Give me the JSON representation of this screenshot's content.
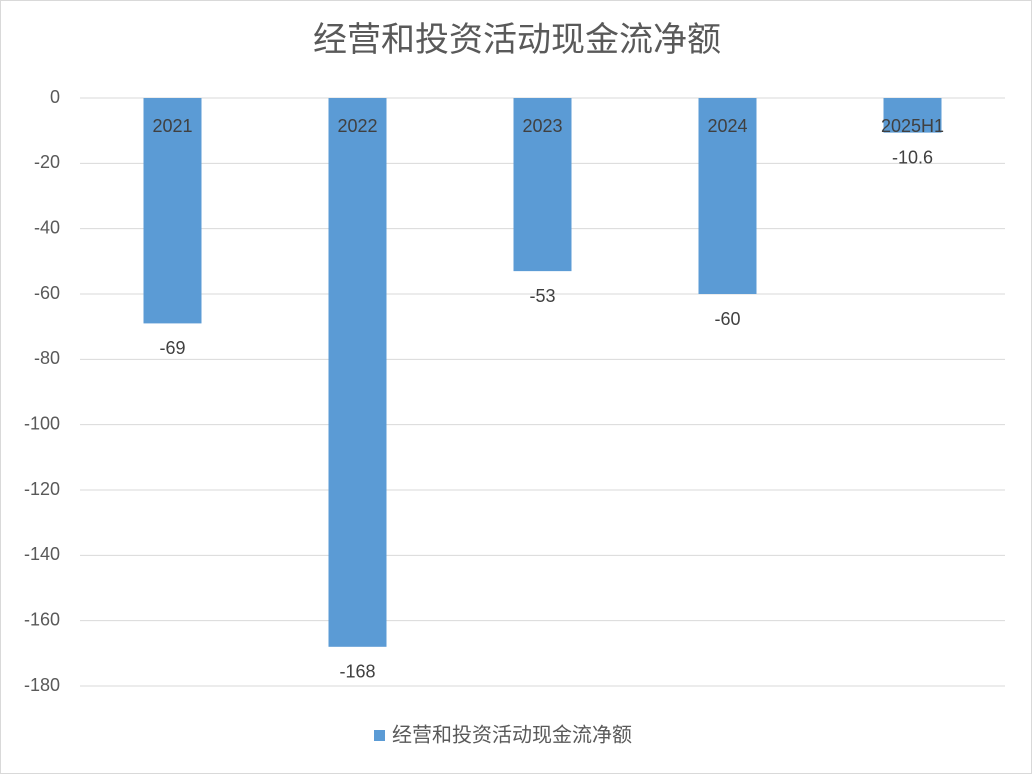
{
  "chart_data": {
    "type": "bar",
    "title": "经营和投资活动现金流净额",
    "categories": [
      "2021",
      "2022",
      "2023",
      "2024",
      "2025H1"
    ],
    "series": [
      {
        "name": "经营和投资活动现金流净额",
        "color": "#5b9bd5",
        "values": [
          -69,
          -168,
          -53,
          -60,
          -10.6
        ]
      }
    ],
    "ylim": [
      -180,
      0
    ],
    "yticks": [
      0,
      -20,
      -40,
      -60,
      -80,
      -100,
      -120,
      -140,
      -160,
      -180
    ],
    "grid": true
  }
}
